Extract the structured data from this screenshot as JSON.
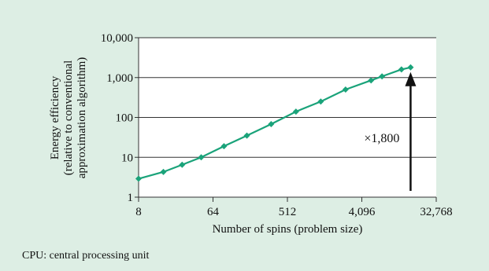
{
  "chart_data": {
    "type": "line",
    "xscale": "log2",
    "yscale": "log10",
    "xlim": [
      8,
      32768
    ],
    "ylim": [
      1,
      10000
    ],
    "xticks": [
      8,
      64,
      512,
      4096,
      32768
    ],
    "xtick_labels": [
      "8",
      "64",
      "512",
      "4,096",
      "32,768"
    ],
    "yticks": [
      1,
      10,
      100,
      1000,
      10000
    ],
    "ytick_labels": [
      "1",
      "10",
      "100",
      "1,000",
      "10,000"
    ],
    "xlabel": "Number of spins (problem size)",
    "ylabel_lines": [
      "Energy efficiency",
      "(relative to conventional",
      "approximation algorithm)"
    ],
    "grid": "horizontal",
    "series": [
      {
        "color": "#1aa37a",
        "marker": "diamond",
        "x": [
          8,
          16,
          27,
          46,
          87,
          165,
          325,
          650,
          1300,
          2600,
          5300,
          7200,
          12400,
          16000
        ],
        "y": [
          2.9,
          4.3,
          6.5,
          10,
          19,
          35,
          68,
          140,
          250,
          500,
          850,
          1070,
          1600,
          1800
        ]
      }
    ],
    "annotation": {
      "text": "×1,800",
      "arrow_at_x": 16000,
      "arrow_from_y": 1,
      "arrow_to_y": 1800
    }
  },
  "footnote": "CPU: central processing unit",
  "colors": {
    "background": "#ddeee4",
    "plot_background": "#ffffff",
    "series": "#1aa37a",
    "grid": "#333333"
  }
}
